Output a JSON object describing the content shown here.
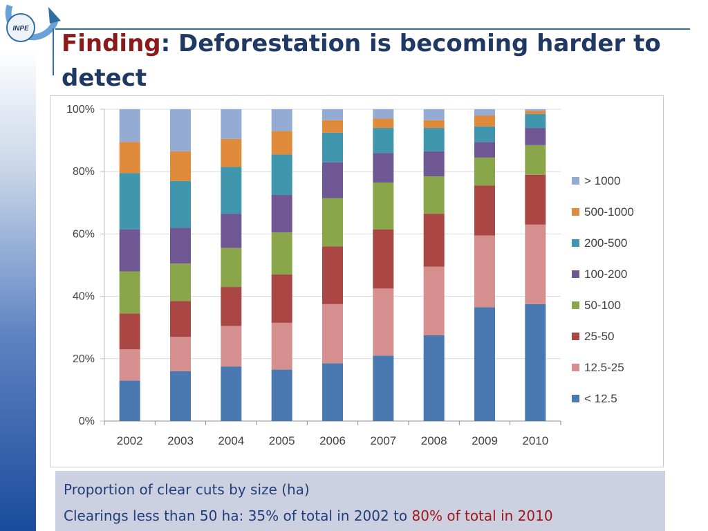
{
  "title": {
    "accent": "Finding",
    "rest": ": Deforestation is becoming harder to detect"
  },
  "logo": {
    "text": "INPE"
  },
  "caption": {
    "line1": "Proportion of clear cuts by size (ha)",
    "line2_prefix": "Clearings less than 50 ha:  35% of total in 2002 to ",
    "line2_highlight": "80% of total in 2010"
  },
  "chart_data": {
    "type": "bar",
    "stacked": true,
    "categories": [
      "2002",
      "2003",
      "2004",
      "2005",
      "2006",
      "2007",
      "2008",
      "2009",
      "2010"
    ],
    "ylim": [
      0,
      100
    ],
    "yticks": [
      0,
      20,
      40,
      60,
      80,
      100
    ],
    "ytick_suffix": "%",
    "grid": true,
    "legend_position": "right",
    "series": [
      {
        "name": "< 12.5",
        "color": "#4a78b0",
        "values": [
          13,
          16,
          17.5,
          16.5,
          18.5,
          21,
          27.5,
          36.5,
          37.5
        ]
      },
      {
        "name": "12.5-25",
        "color": "#d48f8e",
        "values": [
          10,
          11,
          13,
          15,
          19,
          21.5,
          22,
          23,
          25.5
        ]
      },
      {
        "name": "25-50",
        "color": "#aa4745",
        "values": [
          11.5,
          11.5,
          12.5,
          15.5,
          18.5,
          19,
          17,
          16,
          16
        ]
      },
      {
        "name": "50-100",
        "color": "#8aa64b",
        "values": [
          13.5,
          12,
          12.5,
          13.5,
          15.5,
          15,
          12,
          9,
          9.5
        ]
      },
      {
        "name": "100-200",
        "color": "#6e5792",
        "values": [
          13.5,
          11.5,
          11,
          12,
          11.5,
          9.5,
          8,
          5,
          5.5
        ]
      },
      {
        "name": "200-500",
        "color": "#3f96ad",
        "values": [
          18,
          15,
          15,
          13,
          9.5,
          8,
          7.5,
          5,
          4.5
        ]
      },
      {
        "name": "500-1000",
        "color": "#e08a3c",
        "values": [
          10,
          9.5,
          9,
          7.5,
          4,
          3,
          2.5,
          3.5,
          1
        ]
      },
      {
        "name": "> 1000",
        "color": "#94abd4",
        "values": [
          10.5,
          13.5,
          9.5,
          7,
          3.5,
          3,
          3.5,
          2,
          0.5
        ]
      }
    ]
  }
}
